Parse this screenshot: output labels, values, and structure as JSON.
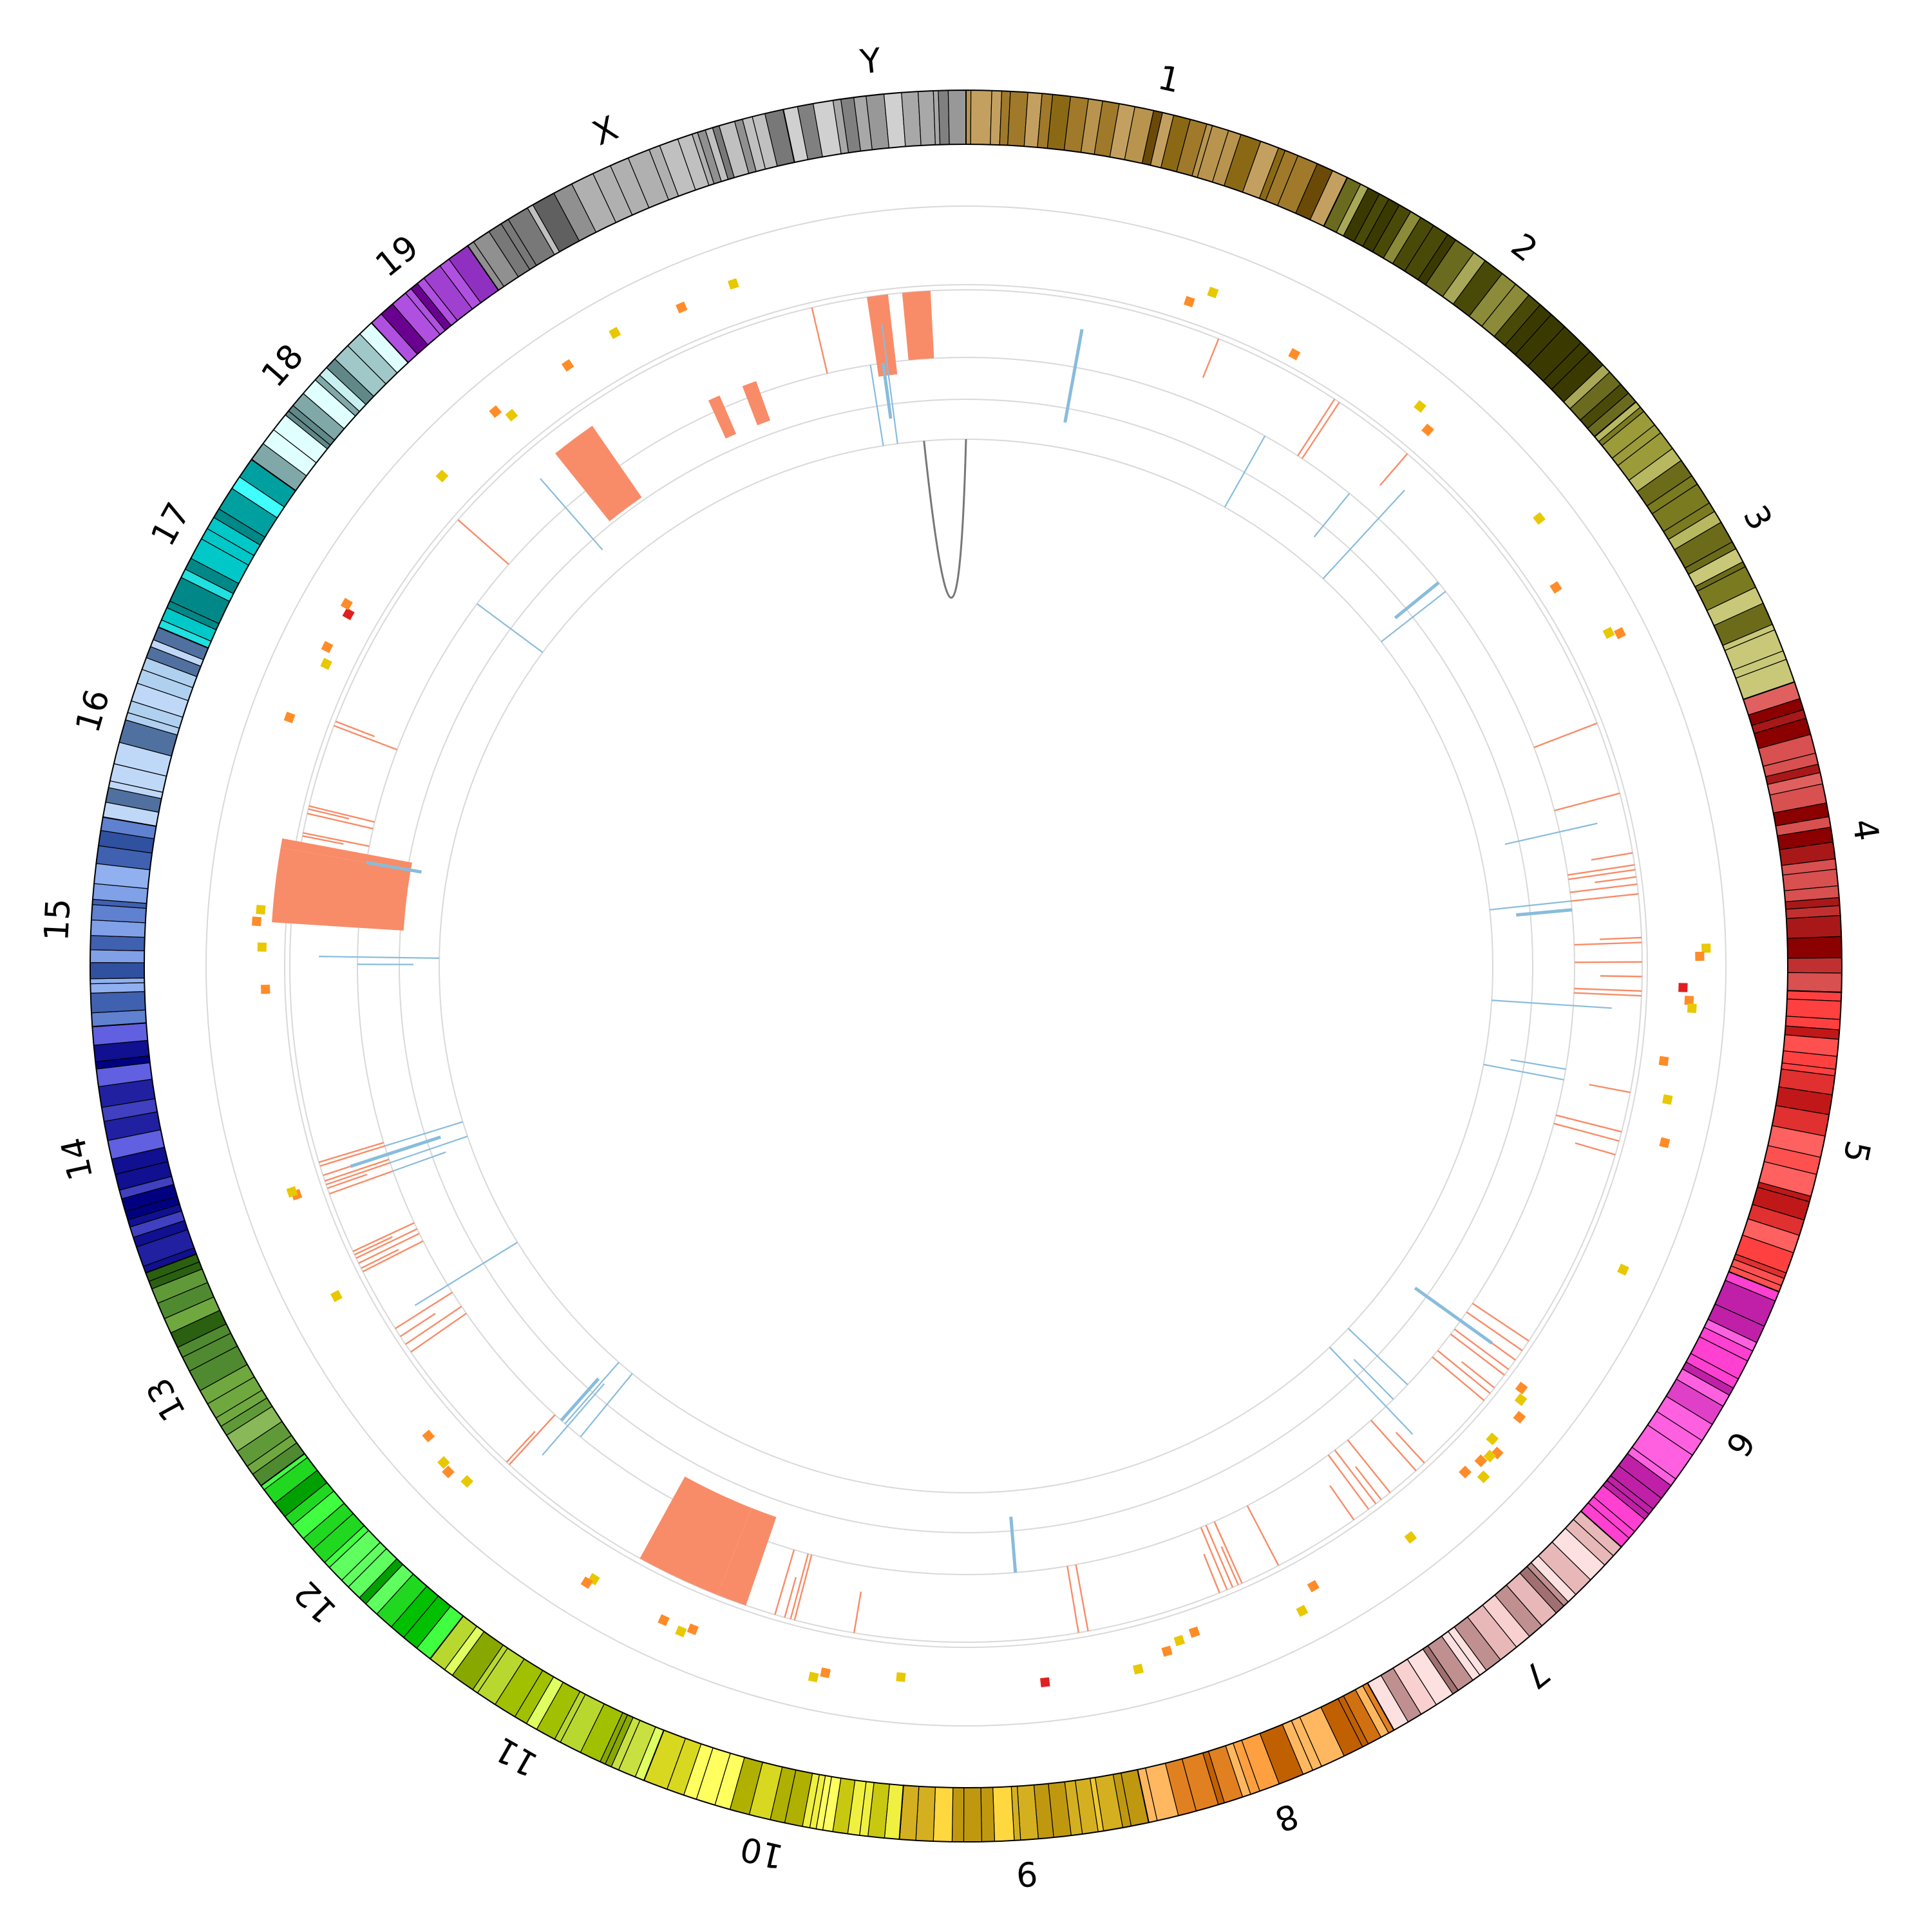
{
  "chromosomes": [
    {
      "label": "1",
      "weight": 19.5,
      "colors": [
        "#8b6914",
        "#a07a2a",
        "#b8944e",
        "#6b4a08",
        "#c4a060"
      ]
    },
    {
      "label": "2",
      "weight": 18.2,
      "colors": [
        "#4a4a08",
        "#6b6b20",
        "#8b8b3a",
        "#a8a858",
        "#3a3a00"
      ]
    },
    {
      "label": "3",
      "weight": 16.0,
      "colors": [
        "#6b6b1a",
        "#9b9b3a",
        "#b8b860",
        "#7a7a20",
        "#c8c878"
      ]
    },
    {
      "label": "4",
      "weight": 15.6,
      "colors": [
        "#8b0000",
        "#c03030",
        "#d85050",
        "#a81818",
        "#e06060"
      ]
    },
    {
      "label": "5",
      "weight": 15.2,
      "colors": [
        "#ff4040",
        "#e03030",
        "#ff6060",
        "#c01818",
        "#ff5050"
      ]
    },
    {
      "label": "6",
      "weight": 14.9,
      "colors": [
        "#b00090",
        "#e040c8",
        "#ff60e0",
        "#c020a8",
        "#ff40d0"
      ]
    },
    {
      "label": "7",
      "weight": 14.5,
      "colors": [
        "#f8d0d0",
        "#c09090",
        "#e8b8b8",
        "#a07070",
        "#fde0e0"
      ]
    },
    {
      "label": "8",
      "weight": 13.0,
      "colors": [
        "#ffa040",
        "#e08020",
        "#c06000",
        "#ffb860",
        "#d07010"
      ]
    },
    {
      "label": "9",
      "weight": 12.4,
      "colors": [
        "#d4b020",
        "#ffd840",
        "#a88000",
        "#f0c830",
        "#c09810"
      ]
    },
    {
      "label": "10",
      "weight": 13.0,
      "colors": [
        "#ffff60",
        "#d8d820",
        "#b0b000",
        "#f0f040",
        "#c8c810"
      ]
    },
    {
      "label": "11",
      "weight": 12.2,
      "colors": [
        "#c8e040",
        "#a0c000",
        "#e0ff60",
        "#88a800",
        "#b8d830"
      ]
    },
    {
      "label": "12",
      "weight": 12.0,
      "colors": [
        "#00c000",
        "#40ff40",
        "#20d820",
        "#00a000",
        "#60ff60"
      ]
    },
    {
      "label": "13",
      "weight": 12.0,
      "colors": [
        "#508a30",
        "#70a840",
        "#2a6010",
        "#609a38",
        "#88b858"
      ]
    },
    {
      "label": "14",
      "weight": 12.5,
      "colors": [
        "#000080",
        "#4040c0",
        "#2020a0",
        "#6060e0",
        "#101090"
      ]
    },
    {
      "label": "15",
      "weight": 10.4,
      "colors": [
        "#3050a0",
        "#6080d0",
        "#90b0f0",
        "#4060b0",
        "#80a0e8"
      ]
    },
    {
      "label": "16",
      "weight": 9.8,
      "colors": [
        "#6080a8",
        "#a0c0e8",
        "#c0d8f8",
        "#5070a0",
        "#b0d0f0"
      ]
    },
    {
      "label": "17",
      "weight": 9.5,
      "colors": [
        "#00c8c8",
        "#40ffff",
        "#00a0a0",
        "#20e0e0",
        "#008888"
      ]
    },
    {
      "label": "18",
      "weight": 9.0,
      "colors": [
        "#80a8a8",
        "#c8f0f0",
        "#a0c8c8",
        "#608888",
        "#e0ffff"
      ]
    },
    {
      "label": "19",
      "weight": 6.1,
      "colors": [
        "#6a0090",
        "#9030c0",
        "#b050e0",
        "#8020b0",
        "#a040d0"
      ]
    },
    {
      "label": "X",
      "weight": 17.1,
      "colors": [
        "#606060",
        "#909090",
        "#b0b0b0",
        "#787878",
        "#c0c0c0"
      ]
    },
    {
      "label": "Y",
      "weight": 9.1,
      "colors": [
        "#808080",
        "#b8b8b8",
        "#d0d0d0",
        "#989898",
        "#a8a8a8"
      ]
    }
  ],
  "tracks": {
    "outer_points": {
      "colors": [
        "#ff8c28",
        "#e8c800",
        "#e02020"
      ]
    },
    "gain_color": "#f88c68",
    "loss_color": "#88bcdc",
    "link_color": "#777777"
  }
}
